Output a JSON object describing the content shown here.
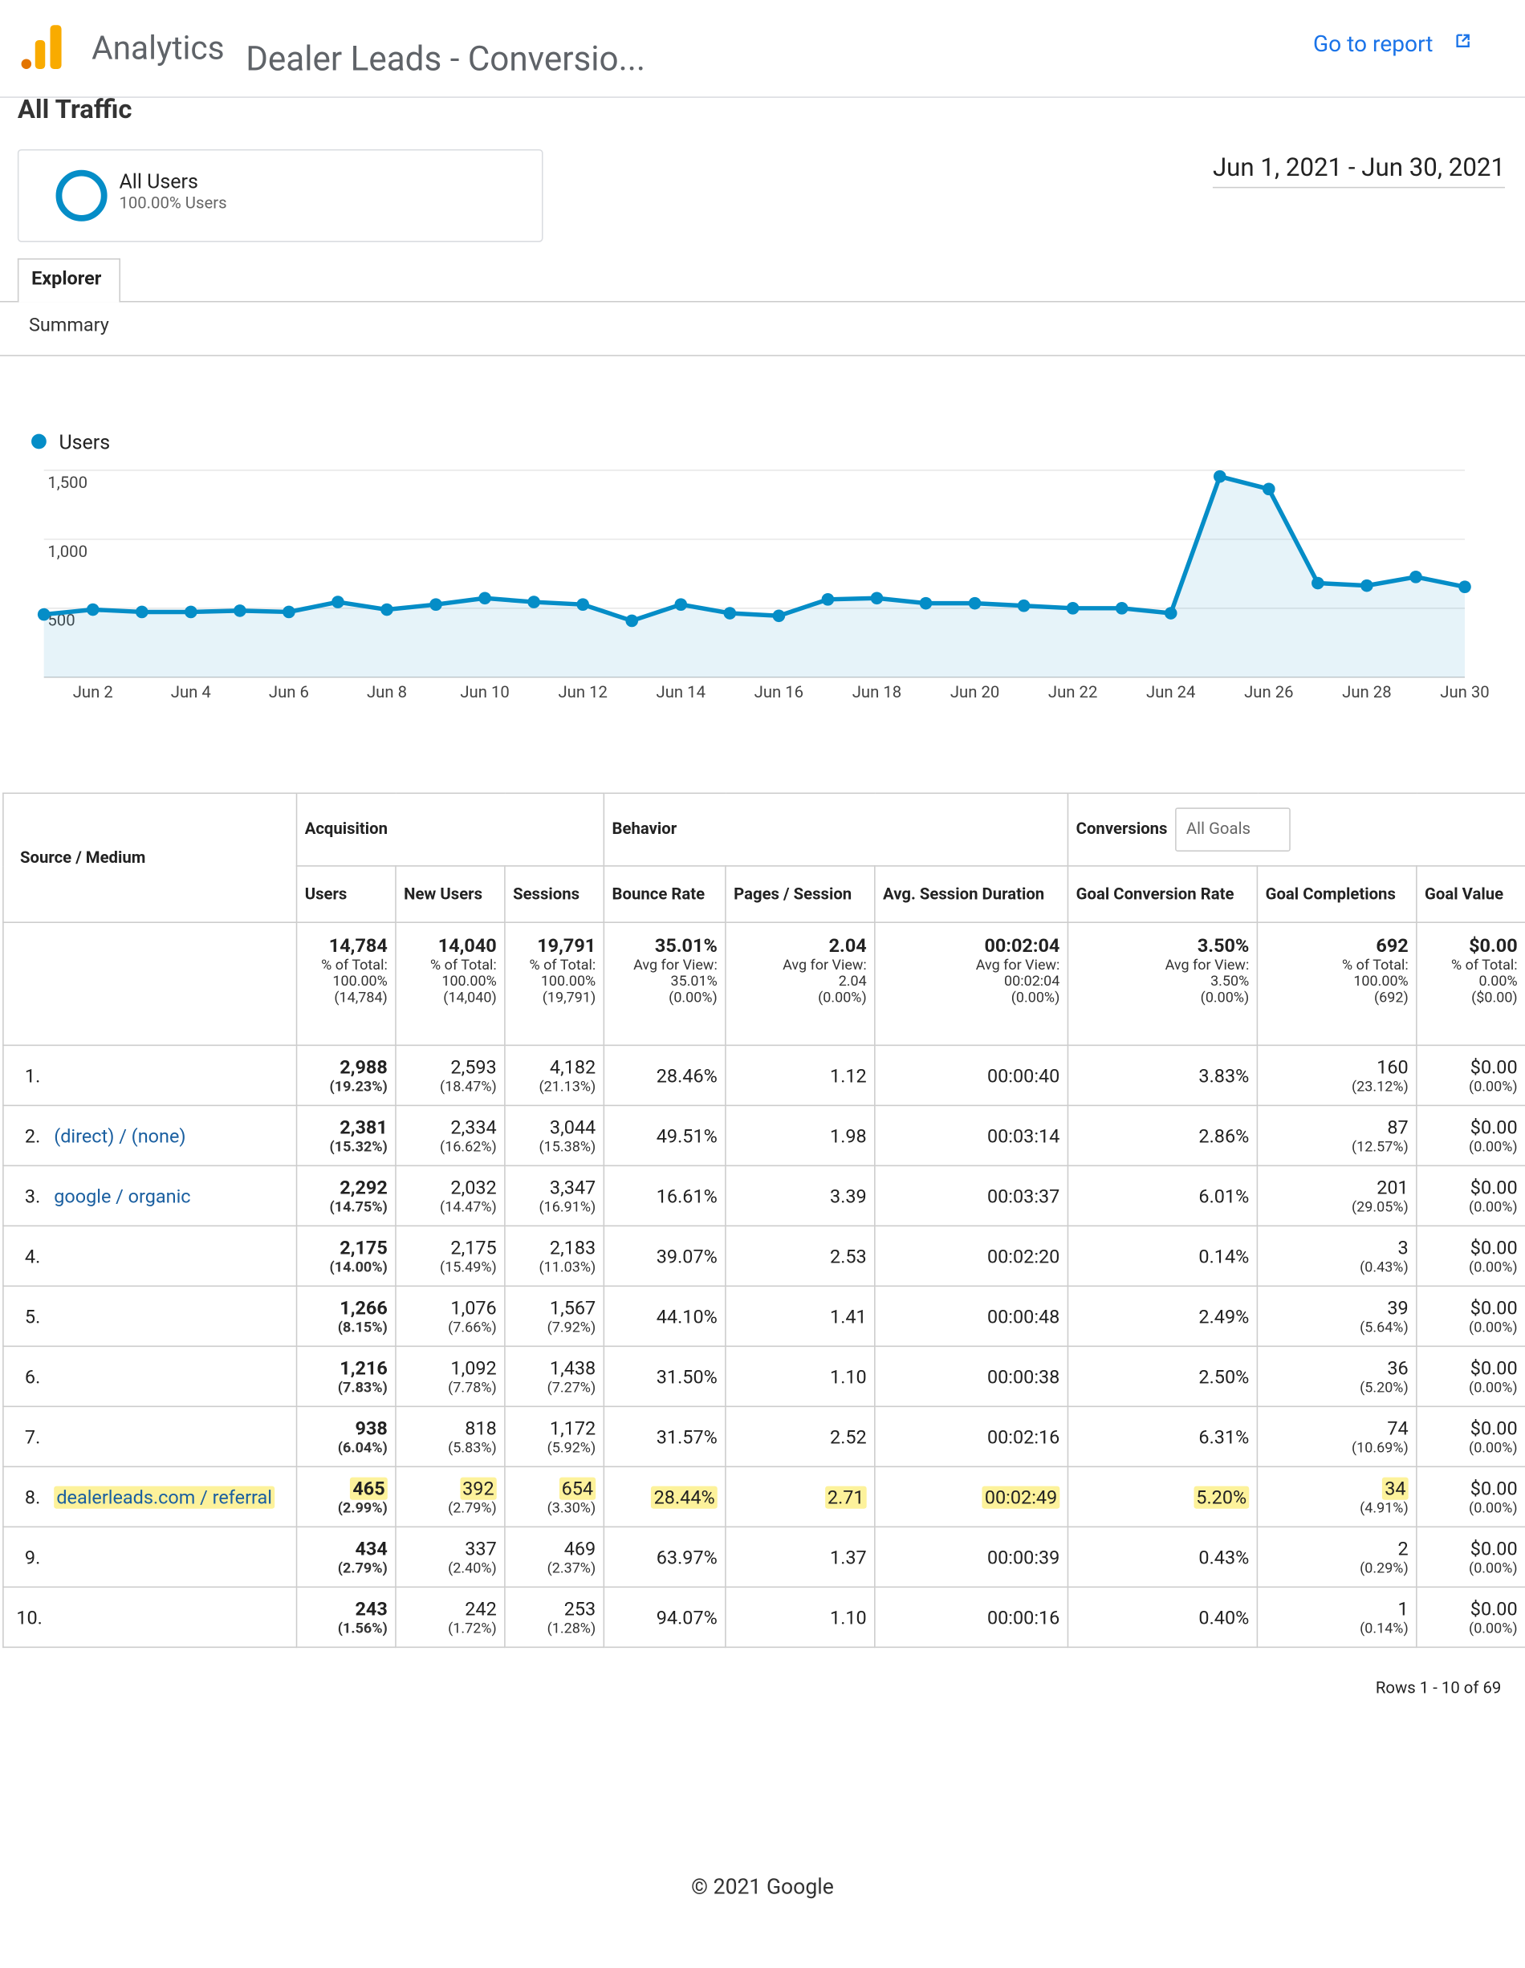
{
  "header": {
    "app": "Analytics",
    "property": "Dealer Leads - Conversio...",
    "report_link": "Go to report",
    "page_title": "All Traffic",
    "segment": "All Users",
    "segment_share": "100.00% Users",
    "date_range": "Jun 1, 2021 - Jun 30, 2021",
    "tab": "Explorer",
    "subtab": "Summary"
  },
  "chart_data": {
    "type": "line",
    "categories": [
      null,
      "Jun 2",
      null,
      "Jun 4",
      null,
      "Jun 6",
      null,
      "Jun 8",
      null,
      "Jun 10",
      null,
      "Jun 12",
      null,
      "Jun 14",
      null,
      "Jun 16",
      null,
      "Jun 18",
      null,
      "Jun 20",
      null,
      "Jun 22",
      null,
      "Jun 24",
      null,
      "Jun 26",
      null,
      "Jun 28",
      null,
      "Jun 30"
    ],
    "series": [
      {
        "name": "Users",
        "color": "#058dc7",
        "values": [
          455,
          490,
          473,
          473,
          482,
          473,
          545,
          490,
          527,
          573,
          545,
          527,
          409,
          527,
          464,
          445,
          564,
          573,
          536,
          536,
          518,
          500,
          500,
          464,
          1455,
          1364,
          682,
          664,
          727,
          655
        ]
      }
    ],
    "ylim": [
      0,
      1500
    ],
    "yticks": [
      500,
      {
        "value": 1000,
        "label": "1,000"
      },
      {
        "value": 1500,
        "label": "1,500"
      }
    ],
    "grid": true,
    "area": true
  },
  "table": {
    "source_header": "Source / Medium",
    "groups": [
      "Acquisition",
      "Behavior",
      "Conversions"
    ],
    "goal_select": "All Goals",
    "columns": [
      "Users",
      "New Users",
      "Sessions",
      "Bounce Rate",
      "Pages / Session",
      "Avg. Session Duration",
      "Goal Conversion Rate",
      "Goal Completions",
      "Goal Value"
    ],
    "totals": [
      {
        "main": "14,784",
        "sub": [
          "% of Total:",
          "100.00%",
          "(14,784)"
        ]
      },
      {
        "main": "14,040",
        "sub": [
          "% of Total:",
          "100.00%",
          "(14,040)"
        ]
      },
      {
        "main": "19,791",
        "sub": [
          "% of Total:",
          "100.00%",
          "(19,791)"
        ]
      },
      {
        "main": "35.01%",
        "sub": [
          "Avg for View:",
          "35.01%",
          "(0.00%)"
        ]
      },
      {
        "main": "2.04",
        "sub": [
          "Avg for View:",
          "2.04",
          "(0.00%)"
        ]
      },
      {
        "main": "00:02:04",
        "sub": [
          "Avg for View:",
          "00:02:04",
          "(0.00%)"
        ]
      },
      {
        "main": "3.50%",
        "sub": [
          "Avg for View:",
          "3.50%",
          "(0.00%)"
        ]
      },
      {
        "main": "692",
        "sub": [
          "% of Total:",
          "100.00%",
          "(692)"
        ]
      },
      {
        "main": "$0.00",
        "sub": [
          "% of Total:",
          "0.00%",
          "($0.00)"
        ]
      }
    ],
    "rows": [
      {
        "index": "1.",
        "cells": [
          [
            "2,988",
            "(19.23%)"
          ],
          [
            "2,593",
            "(18.47%)"
          ],
          [
            "4,182",
            "(21.13%)"
          ],
          [
            "28.46%"
          ],
          [
            "1.12"
          ],
          [
            "00:00:40"
          ],
          [
            "3.83%"
          ],
          [
            "160",
            "(23.12%)"
          ],
          [
            "$0.00",
            "(0.00%)"
          ]
        ]
      },
      {
        "index": "2.",
        "source": "(direct) / (none)",
        "cells": [
          [
            "2,381",
            "(15.32%)"
          ],
          [
            "2,334",
            "(16.62%)"
          ],
          [
            "3,044",
            "(15.38%)"
          ],
          [
            "49.51%"
          ],
          [
            "1.98"
          ],
          [
            "00:03:14"
          ],
          [
            "2.86%"
          ],
          [
            "87",
            "(12.57%)"
          ],
          [
            "$0.00",
            "(0.00%)"
          ]
        ]
      },
      {
        "index": "3.",
        "source": "google / organic",
        "cells": [
          [
            "2,292",
            "(14.75%)"
          ],
          [
            "2,032",
            "(14.47%)"
          ],
          [
            "3,347",
            "(16.91%)"
          ],
          [
            "16.61%"
          ],
          [
            "3.39"
          ],
          [
            "00:03:37"
          ],
          [
            "6.01%"
          ],
          [
            "201",
            "(29.05%)"
          ],
          [
            "$0.00",
            "(0.00%)"
          ]
        ]
      },
      {
        "index": "4.",
        "cells": [
          [
            "2,175",
            "(14.00%)"
          ],
          [
            "2,175",
            "(15.49%)"
          ],
          [
            "2,183",
            "(11.03%)"
          ],
          [
            "39.07%"
          ],
          [
            "2.53"
          ],
          [
            "00:02:20"
          ],
          [
            "0.14%"
          ],
          [
            "3",
            "(0.43%)"
          ],
          [
            "$0.00",
            "(0.00%)"
          ]
        ]
      },
      {
        "index": "5.",
        "cells": [
          [
            "1,266",
            "(8.15%)"
          ],
          [
            "1,076",
            "(7.66%)"
          ],
          [
            "1,567",
            "(7.92%)"
          ],
          [
            "44.10%"
          ],
          [
            "1.41"
          ],
          [
            "00:00:48"
          ],
          [
            "2.49%"
          ],
          [
            "39",
            "(5.64%)"
          ],
          [
            "$0.00",
            "(0.00%)"
          ]
        ]
      },
      {
        "index": "6.",
        "cells": [
          [
            "1,216",
            "(7.83%)"
          ],
          [
            "1,092",
            "(7.78%)"
          ],
          [
            "1,438",
            "(7.27%)"
          ],
          [
            "31.50%"
          ],
          [
            "1.10"
          ],
          [
            "00:00:38"
          ],
          [
            "2.50%"
          ],
          [
            "36",
            "(5.20%)"
          ],
          [
            "$0.00",
            "(0.00%)"
          ]
        ]
      },
      {
        "index": "7.",
        "cells": [
          [
            "938",
            "(6.04%)"
          ],
          [
            "818",
            "(5.83%)"
          ],
          [
            "1,172",
            "(5.92%)"
          ],
          [
            "31.57%"
          ],
          [
            "2.52"
          ],
          [
            "00:02:16"
          ],
          [
            "6.31%"
          ],
          [
            "74",
            "(10.69%)"
          ],
          [
            "$0.00",
            "(0.00%)"
          ]
        ]
      },
      {
        "index": "8.",
        "source": "dealerleads.com / referral",
        "highlight": true,
        "cells": [
          [
            "465",
            "(2.99%)"
          ],
          [
            "392",
            "(2.79%)"
          ],
          [
            "654",
            "(3.30%)"
          ],
          [
            "28.44%"
          ],
          [
            "2.71"
          ],
          [
            "00:02:49"
          ],
          [
            "5.20%"
          ],
          [
            "34",
            "(4.91%)"
          ],
          [
            "$0.00",
            "(0.00%)"
          ]
        ]
      },
      {
        "index": "9.",
        "cells": [
          [
            "434",
            "(2.79%)"
          ],
          [
            "337",
            "(2.40%)"
          ],
          [
            "469",
            "(2.37%)"
          ],
          [
            "63.97%"
          ],
          [
            "1.37"
          ],
          [
            "00:00:39"
          ],
          [
            "0.43%"
          ],
          [
            "2",
            "(0.29%)"
          ],
          [
            "$0.00",
            "(0.00%)"
          ]
        ]
      },
      {
        "index": "10.",
        "cells": [
          [
            "243",
            "(1.56%)"
          ],
          [
            "242",
            "(1.72%)"
          ],
          [
            "253",
            "(1.28%)"
          ],
          [
            "94.07%"
          ],
          [
            "1.10"
          ],
          [
            "00:00:16"
          ],
          [
            "0.40%"
          ],
          [
            "1",
            "(0.14%)"
          ],
          [
            "$0.00",
            "(0.00%)"
          ]
        ]
      }
    ],
    "pagination": "Rows 1 - 10 of 69"
  },
  "footer": "© 2021 Google"
}
